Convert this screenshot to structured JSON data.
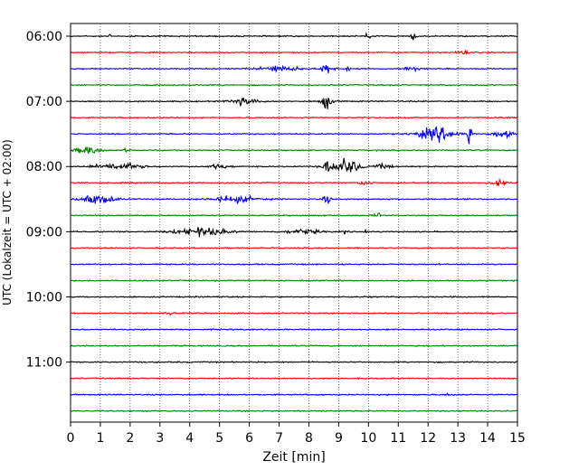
{
  "chart_data": {
    "type": "line",
    "title": "",
    "xlabel": "Zeit  [min]",
    "ylabel": "UTC (Lokalzeit = UTC + 02:00)",
    "xlim": [
      0,
      15
    ],
    "x_ticks": [
      "0",
      "1",
      "2",
      "3",
      "4",
      "5",
      "6",
      "7",
      "8",
      "9",
      "10",
      "11",
      "12",
      "13",
      "14",
      "15"
    ],
    "y_ticks": [
      "06:00",
      "07:00",
      "08:00",
      "09:00",
      "10:00",
      "11:00"
    ],
    "grid": "vertical dotted lines at each minute",
    "trace_interval_minutes": 15,
    "first_trace_start": "06:00",
    "trace_color_cycle": [
      "#000000",
      "#ff0000",
      "#0000ff",
      "#008000"
    ],
    "series": [
      {
        "start": "06:00",
        "color": "#000000",
        "bursts": [
          [
            1.3,
            0.15,
            0.3
          ],
          [
            10.0,
            0.3,
            0.8
          ],
          [
            11.5,
            0.3,
            0.6
          ]
        ]
      },
      {
        "start": "06:15",
        "color": "#ff0000",
        "bursts": [
          [
            13.2,
            0.6,
            0.25
          ]
        ]
      },
      {
        "start": "06:30",
        "color": "#0000ff",
        "bursts": [
          [
            7.0,
            1.8,
            0.45
          ],
          [
            8.6,
            0.6,
            0.8
          ],
          [
            9.3,
            0.15,
            1.4
          ],
          [
            11.5,
            0.8,
            0.35
          ]
        ]
      },
      {
        "start": "06:45",
        "color": "#008000",
        "bursts": []
      },
      {
        "start": "07:00",
        "color": "#000000",
        "bursts": [
          [
            5.8,
            1.3,
            0.5
          ],
          [
            8.6,
            0.5,
            1.1
          ]
        ]
      },
      {
        "start": "07:15",
        "color": "#ff0000",
        "bursts": []
      },
      {
        "start": "07:30",
        "color": "#0000ff",
        "bursts": [
          [
            12.3,
            1.8,
            1.0
          ],
          [
            13.4,
            0.2,
            2.1
          ],
          [
            14.5,
            1.0,
            0.5
          ]
        ]
      },
      {
        "start": "07:45",
        "color": "#008000",
        "bursts": [
          [
            0.6,
            1.2,
            0.6
          ],
          [
            1.9,
            0.3,
            0.3
          ]
        ]
      },
      {
        "start": "08:00",
        "color": "#000000",
        "bursts": [
          [
            1.6,
            2.2,
            0.5
          ],
          [
            5.0,
            1.0,
            0.3
          ],
          [
            8.6,
            0.2,
            1.5
          ],
          [
            9.2,
            1.5,
            1.2
          ],
          [
            10.5,
            0.8,
            0.3
          ]
        ]
      },
      {
        "start": "08:15",
        "color": "#ff0000",
        "bursts": [
          [
            9.9,
            0.6,
            0.4
          ],
          [
            14.4,
            0.8,
            0.4
          ]
        ]
      },
      {
        "start": "08:30",
        "color": "#0000ff",
        "bursts": [
          [
            0.9,
            1.6,
            0.7
          ],
          [
            5.5,
            2.2,
            0.5
          ],
          [
            8.6,
            0.4,
            0.7
          ]
        ]
      },
      {
        "start": "08:45",
        "color": "#008000",
        "bursts": [
          [
            10.3,
            0.3,
            0.5
          ]
        ]
      },
      {
        "start": "09:00",
        "color": "#000000",
        "bursts": [
          [
            4.4,
            2.5,
            0.6
          ],
          [
            7.8,
            1.8,
            0.3
          ],
          [
            9.2,
            0.2,
            0.3
          ],
          [
            9.9,
            0.2,
            0.3
          ]
        ]
      },
      {
        "start": "09:15",
        "color": "#ff0000",
        "bursts": []
      },
      {
        "start": "09:30",
        "color": "#0000ff",
        "bursts": []
      },
      {
        "start": "09:45",
        "color": "#008000",
        "bursts": []
      },
      {
        "start": "10:00",
        "color": "#000000",
        "bursts": []
      },
      {
        "start": "10:15",
        "color": "#ff0000",
        "bursts": [
          [
            3.3,
            0.4,
            0.2
          ],
          [
            14.2,
            0.2,
            0.2
          ]
        ]
      },
      {
        "start": "10:30",
        "color": "#0000ff",
        "bursts": []
      },
      {
        "start": "10:45",
        "color": "#008000",
        "bursts": []
      },
      {
        "start": "11:00",
        "color": "#000000",
        "bursts": []
      },
      {
        "start": "11:15",
        "color": "#ff0000",
        "bursts": []
      },
      {
        "start": "11:30",
        "color": "#0000ff",
        "bursts": [
          [
            12.7,
            0.6,
            0.15
          ]
        ]
      },
      {
        "start": "11:45",
        "color": "#008000",
        "bursts": []
      }
    ]
  }
}
